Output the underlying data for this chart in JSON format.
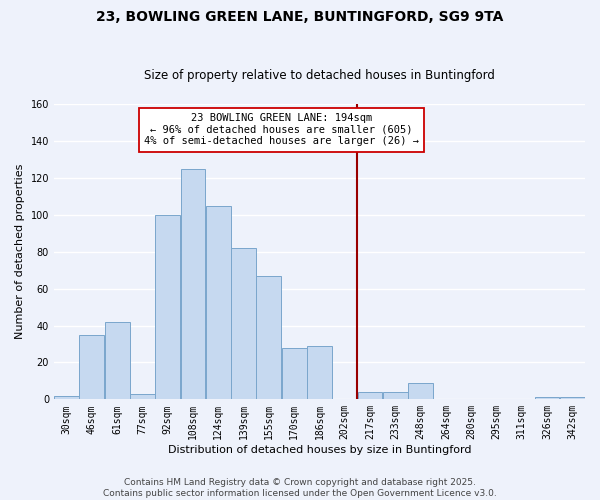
{
  "title": "23, BOWLING GREEN LANE, BUNTINGFORD, SG9 9TA",
  "subtitle": "Size of property relative to detached houses in Buntingford",
  "xlabel": "Distribution of detached houses by size in Buntingford",
  "ylabel": "Number of detached properties",
  "bar_labels": [
    "30sqm",
    "46sqm",
    "61sqm",
    "77sqm",
    "92sqm",
    "108sqm",
    "124sqm",
    "139sqm",
    "155sqm",
    "170sqm",
    "186sqm",
    "202sqm",
    "217sqm",
    "233sqm",
    "248sqm",
    "264sqm",
    "280sqm",
    "295sqm",
    "311sqm",
    "326sqm",
    "342sqm"
  ],
  "bar_values": [
    2,
    35,
    42,
    3,
    100,
    125,
    105,
    82,
    67,
    28,
    29,
    0,
    4,
    4,
    9,
    0,
    0,
    0,
    0,
    1,
    1
  ],
  "bar_color": "#c6d9f0",
  "bar_edge_color": "#7aa6cc",
  "ylim": [
    0,
    160
  ],
  "yticks": [
    0,
    20,
    40,
    60,
    80,
    100,
    120,
    140,
    160
  ],
  "vline_color": "#990000",
  "annotation_text": "23 BOWLING GREEN LANE: 194sqm\n← 96% of detached houses are smaller (605)\n4% of semi-detached houses are larger (26) →",
  "annotation_box_color": "#ffffff",
  "annotation_box_edge": "#cc0000",
  "footer_line1": "Contains HM Land Registry data © Crown copyright and database right 2025.",
  "footer_line2": "Contains public sector information licensed under the Open Government Licence v3.0.",
  "background_color": "#eef2fb",
  "grid_color": "#ffffff",
  "title_fontsize": 10,
  "subtitle_fontsize": 8.5,
  "axis_label_fontsize": 8,
  "tick_fontsize": 7,
  "annotation_fontsize": 7.5,
  "footer_fontsize": 6.5,
  "bin_width": 1,
  "n_bins": 21,
  "vline_bin": 11.5
}
